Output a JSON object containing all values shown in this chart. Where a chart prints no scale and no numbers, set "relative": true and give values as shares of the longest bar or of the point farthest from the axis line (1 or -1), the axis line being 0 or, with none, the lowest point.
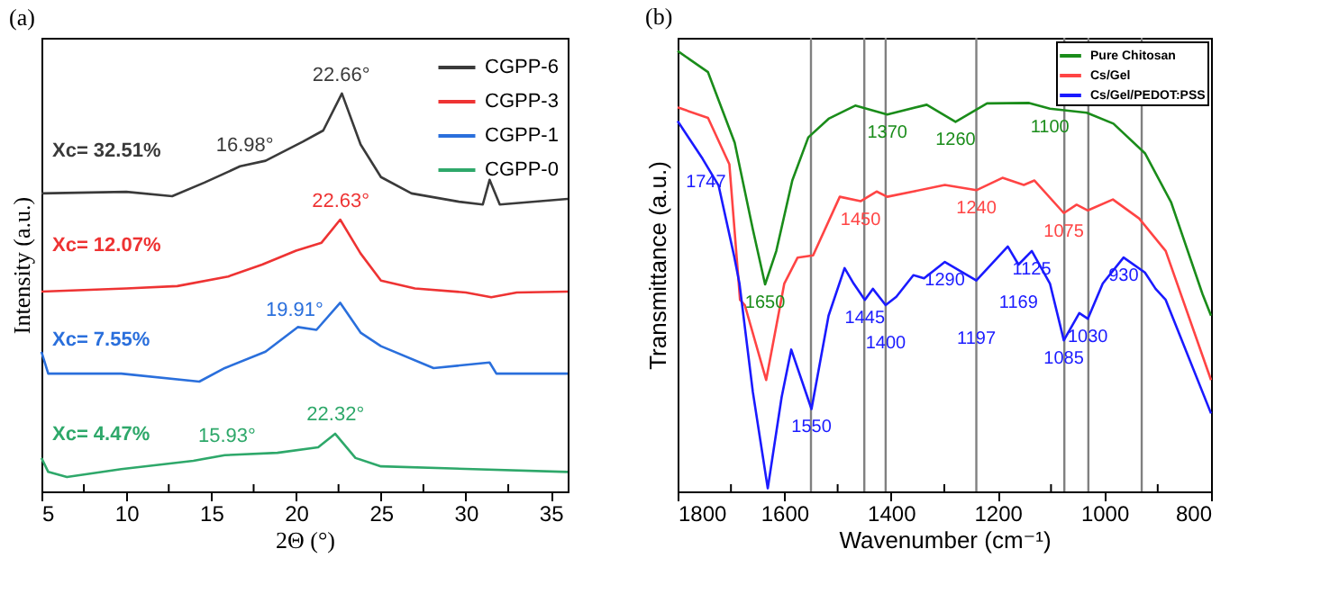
{
  "chart_data": [
    {
      "type": "line",
      "title": "(a)",
      "xlabel": "2Θ (°)",
      "ylabel": "Intensity (a.u.)",
      "relative": true,
      "xlim": [
        5,
        36
      ],
      "xticks": [
        5,
        {
          "value": 7.5,
          "label": null
        },
        10,
        {
          "value": 12.5,
          "label": null
        },
        15,
        {
          "value": 17.5,
          "label": null
        },
        20,
        {
          "value": 22.5,
          "label": null
        },
        25,
        {
          "value": 27.5,
          "label": null
        },
        30,
        {
          "value": 32.5,
          "label": null
        },
        35
      ],
      "tick_labels": "x",
      "grid": false,
      "legend": "top right",
      "marker": "none",
      "line_style": "solid",
      "series": [
        {
          "name": "CGPP-6",
          "color": "#3a3a3a",
          "x": [
            5,
            10,
            12.7,
            14.6,
            16.7,
            18.2,
            20.4,
            21.6,
            22.7,
            23.8,
            25,
            26.8,
            29.6,
            31,
            31.4,
            32,
            36
          ],
          "values": [
            0.749,
            0.753,
            0.742,
            0.776,
            0.817,
            0.831,
            0.879,
            0.907,
            1.0,
            0.872,
            0.79,
            0.749,
            0.728,
            0.721,
            0.783,
            0.721,
            0.735
          ]
        },
        {
          "name": "CGPP-3",
          "color": "#ee3333",
          "x": [
            5,
            10,
            13,
            16,
            18,
            20,
            21.5,
            22.6,
            23.8,
            25,
            27,
            30,
            31.5,
            33,
            36
          ],
          "values": [
            0.502,
            0.51,
            0.516,
            0.54,
            0.57,
            0.605,
            0.625,
            0.683,
            0.598,
            0.53,
            0.51,
            0.5,
            0.488,
            0.5,
            0.502
          ]
        },
        {
          "name": "CGPP-1",
          "color": "#2a6fdc",
          "x": [
            5,
            5.4,
            9.7,
            14.3,
            15.8,
            18.2,
            20.1,
            21.2,
            22.6,
            23.8,
            25,
            28.1,
            31.4,
            31.8,
            36
          ],
          "values": [
            0.351,
            0.296,
            0.296,
            0.276,
            0.31,
            0.351,
            0.413,
            0.406,
            0.474,
            0.399,
            0.365,
            0.31,
            0.324,
            0.296,
            0.296
          ]
        },
        {
          "name": "CGPP-0",
          "color": "#2ea86a",
          "x": [
            5,
            5.4,
            6.5,
            9.7,
            13.95,
            15.8,
            18.9,
            21.3,
            22.3,
            23.5,
            25,
            36
          ],
          "values": [
            0.084,
            0.049,
            0.036,
            0.056,
            0.077,
            0.091,
            0.097,
            0.111,
            0.145,
            0.084,
            0.063,
            0.049
          ]
        }
      ],
      "annotations": [
        {
          "text": "22.66°",
          "x": 22.66,
          "y": 0.997
        },
        {
          "text": "16.98°",
          "x": 16.98,
          "y": 0.82
        },
        {
          "text": "22.63°",
          "x": 22.63,
          "y": 0.681
        },
        {
          "text": "19.91°",
          "x": 19.91,
          "y": 0.407
        },
        {
          "text": "22.32°",
          "x": 22.32,
          "y": 0.144
        },
        {
          "text": "15.93°",
          "x": 15.93,
          "y": 0.091
        },
        "Xc= 32.51%",
        "Xc= 12.07%",
        "Xc= 7.55%",
        "Xc= 4.47%"
      ]
    },
    {
      "type": "line",
      "title": "(b)",
      "xlabel": "Wavenumber (cm⁻¹)",
      "ylabel": "Transmittance (a.u.)",
      "relative": true,
      "xlim": [
        1800,
        800
      ],
      "xticks": [
        1800,
        {
          "value": 1700,
          "label": null
        },
        1600,
        {
          "value": 1500,
          "label": null
        },
        1400,
        {
          "value": 1300,
          "label": null
        },
        1200,
        {
          "value": 1100,
          "label": null
        },
        1000,
        {
          "value": 900,
          "label": null
        },
        800
      ],
      "tick_labels": "x",
      "grid": false,
      "legend": "top right",
      "marker": "none",
      "line_style": "solid",
      "series": [
        {
          "name": "Pure Chitosan",
          "color": "#1a8c1a",
          "x": [
            1800,
            1743,
            1693,
            1659,
            1636,
            1615,
            1585,
            1555,
            1516,
            1467,
            1407,
            1333,
            1279,
            1220,
            1141,
            1102,
            1033,
            983,
            924,
            875,
            816,
            800
          ],
          "values": [
            1.0,
            0.952,
            0.792,
            0.595,
            0.47,
            0.546,
            0.706,
            0.804,
            0.847,
            0.876,
            0.856,
            0.878,
            0.839,
            0.881,
            0.882,
            0.869,
            0.86,
            0.835,
            0.768,
            0.657,
            0.448,
            0.399
          ]
        },
        {
          "name": "Cs/Gel",
          "color": "#ff4444",
          "x": [
            1800,
            1743,
            1703,
            1683,
            1674,
            1634,
            1600,
            1575,
            1546,
            1496,
            1457,
            1427,
            1407,
            1358,
            1299,
            1240,
            1191,
            1151,
            1131,
            1076,
            1052,
            1031,
            984,
            935,
            885,
            800
          ],
          "values": [
            0.872,
            0.848,
            0.743,
            0.435,
            0.423,
            0.253,
            0.472,
            0.531,
            0.536,
            0.669,
            0.659,
            0.681,
            0.669,
            0.681,
            0.696,
            0.684,
            0.712,
            0.696,
            0.706,
            0.632,
            0.651,
            0.638,
            0.663,
            0.62,
            0.546,
            0.253
          ]
        },
        {
          "name": "Cs/Gel/PEDOT:PSS",
          "color": "#1a1aff",
          "x": [
            1800,
            1753,
            1723,
            1694,
            1684,
            1659,
            1631,
            1605,
            1587,
            1549,
            1517,
            1487,
            1470,
            1449,
            1434,
            1410,
            1390,
            1358,
            1338,
            1299,
            1240,
            1181,
            1161,
            1136,
            1102,
            1076,
            1047,
            1031,
            1003,
            964,
            924,
            904,
            885,
            800
          ],
          "values": [
            0.841,
            0.755,
            0.694,
            0.534,
            0.472,
            0.226,
            0.007,
            0.214,
            0.322,
            0.187,
            0.399,
            0.507,
            0.472,
            0.435,
            0.46,
            0.423,
            0.442,
            0.491,
            0.484,
            0.521,
            0.479,
            0.556,
            0.515,
            0.546,
            0.472,
            0.343,
            0.405,
            0.392,
            0.472,
            0.531,
            0.497,
            0.46,
            0.435,
            0.177
          ]
        }
      ],
      "ref_lines": [
        {
          "axis": "x",
          "value": 1550,
          "color": "#808080"
        },
        {
          "axis": "x",
          "value": 1450,
          "color": "#808080"
        },
        {
          "axis": "x",
          "value": 1410,
          "color": "#808080"
        },
        {
          "axis": "x",
          "value": 1240,
          "color": "#808080"
        },
        {
          "axis": "x",
          "value": 1075,
          "color": "#808080"
        },
        {
          "axis": "x",
          "value": 1030,
          "color": "#808080"
        },
        {
          "axis": "x",
          "value": 930,
          "color": "#808080"
        }
      ],
      "annotations": [
        {
          "text": "1747",
          "x": 1747,
          "y": 0.743
        },
        {
          "text": "1650",
          "x": 1636,
          "y": 0.47
        },
        {
          "text": "1550",
          "x": 1549,
          "y": 0.187
        },
        {
          "text": "1450",
          "x": 1457,
          "y": 0.659
        },
        {
          "text": "1445",
          "x": 1449,
          "y": 0.435
        },
        {
          "text": "1400",
          "x": 1410,
          "y": 0.423
        },
        {
          "text": "1370",
          "x": 1407,
          "y": 0.856
        },
        {
          "text": "1290",
          "x": 1299,
          "y": 0.521
        },
        {
          "text": "1260",
          "x": 1279,
          "y": 0.839
        },
        {
          "text": "1240",
          "x": 1240,
          "y": 0.684
        },
        {
          "text": "1125",
          "x": 1136,
          "y": 0.546
        },
        {
          "text": "1169",
          "x": 1161,
          "y": 0.515
        },
        {
          "text": "1197",
          "x": 1240,
          "y": 0.479
        },
        {
          "text": "1100",
          "x": 1102,
          "y": 0.869
        },
        {
          "text": "1075",
          "x": 1076,
          "y": 0.632
        },
        {
          "text": "1085",
          "x": 1076,
          "y": 0.343
        },
        {
          "text": "1030",
          "x": 1031,
          "y": 0.392
        },
        {
          "text": "930",
          "x": 964,
          "y": 0.531
        }
      ]
    }
  ]
}
